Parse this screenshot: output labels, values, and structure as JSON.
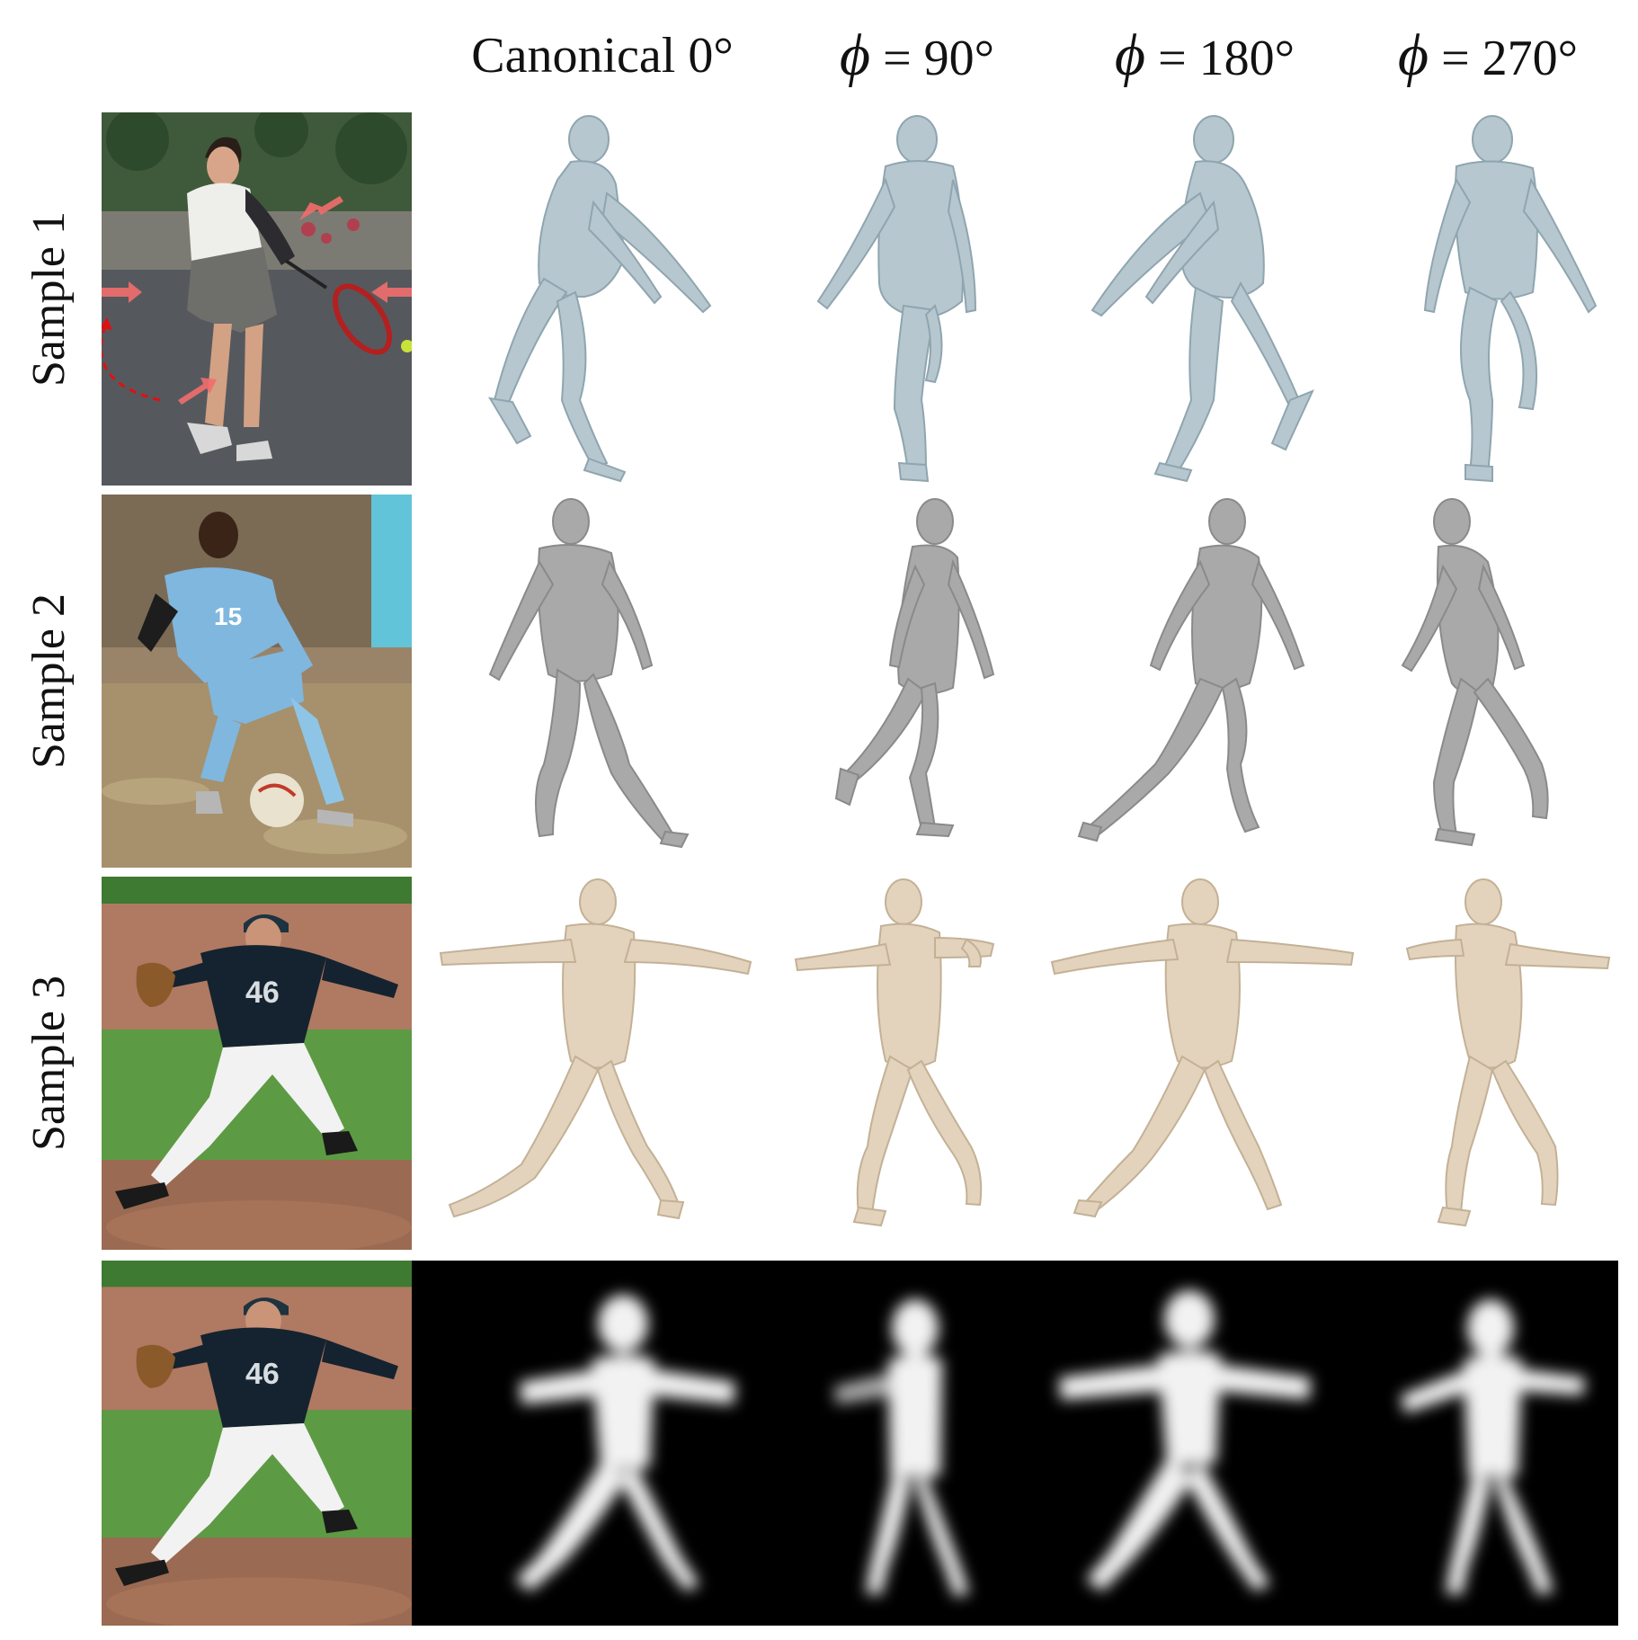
{
  "figure": {
    "column_headers": [
      {
        "prefix": "Canonical 0°",
        "symbol": "",
        "angle": ""
      },
      {
        "prefix": "",
        "symbol": "ϕ",
        "angle": " = 90°"
      },
      {
        "prefix": "",
        "symbol": "ϕ",
        "angle": " = 180°"
      },
      {
        "prefix": "",
        "symbol": "ϕ",
        "angle": " = 270°"
      }
    ],
    "row_labels": [
      "Sample 1",
      "Sample 2",
      "Sample 3"
    ],
    "photo_text": {
      "sample2_jersey": "15",
      "sample3_jersey": "46",
      "sample4_jersey": "46"
    },
    "mesh_colors": {
      "sample1": "#b6c7cf",
      "sample2": "#a9a9a9",
      "sample3": "#e3d3bc"
    },
    "icons": [
      "red-arrow-icon",
      "dashed-curve-arrow-icon"
    ]
  }
}
